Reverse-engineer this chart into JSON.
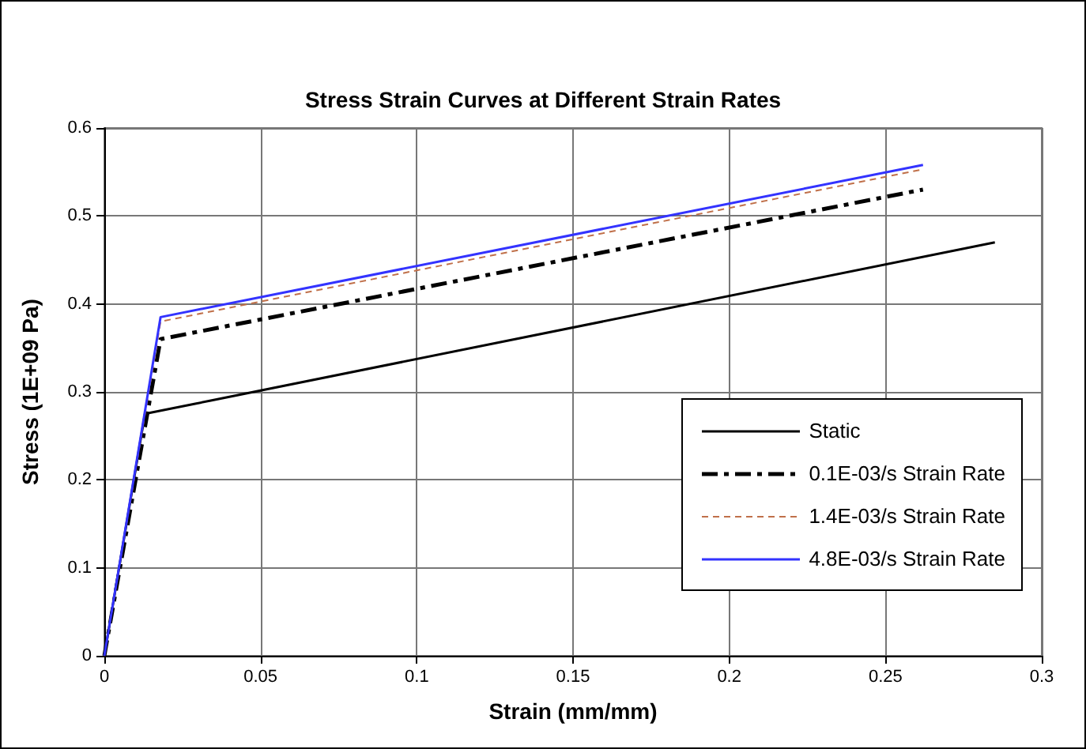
{
  "chart_data": {
    "type": "line",
    "title": "Stress Strain Curves at Different Strain Rates",
    "xlabel": "Strain (mm/mm)",
    "ylabel": "Stress (1E+09 Pa)",
    "xlim": [
      0,
      0.3
    ],
    "xticks": [
      0,
      0.05,
      0.1,
      0.15,
      0.2,
      0.25,
      0.3
    ],
    "ylim": [
      0,
      0.6
    ],
    "yticks": [
      0,
      0.1,
      0.2,
      0.3,
      0.4,
      0.5,
      0.6
    ],
    "grid": true,
    "legend": "bottom right",
    "marker": "none",
    "series": [
      {
        "name": "Static",
        "color": "#000000",
        "line_style": "solid",
        "x": [
          0,
          0.013,
          0.285
        ],
        "values": [
          0,
          0.275,
          0.47
        ]
      },
      {
        "name": "0.1E-03/s Strain Rate",
        "color": "#000000",
        "line_style": "dashed",
        "x": [
          0,
          0.018,
          0.262
        ],
        "values": [
          0,
          0.36,
          0.53
        ]
      },
      {
        "name": "1.4E-03/s Strain Rate",
        "color": "#c0704a",
        "line_style": "dotted",
        "x": [
          0,
          0.018,
          0.262
        ],
        "values": [
          0,
          0.38,
          0.553
        ]
      },
      {
        "name": "4.8E-03/s Strain Rate",
        "color": "#3333ff",
        "line_style": "solid",
        "x": [
          0,
          0.018,
          0.262
        ],
        "values": [
          0,
          0.385,
          0.558
        ]
      }
    ]
  }
}
